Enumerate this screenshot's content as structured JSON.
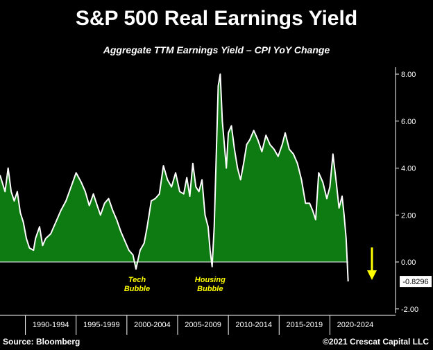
{
  "chart_data": {
    "type": "area",
    "title": "S&P 500 Real Earnings Yield",
    "subtitle": "Aggregate TTM Earnings Yield – CPI YoY Change",
    "ylim": [
      -2.2,
      8.6
    ],
    "yticks": [
      "8.00",
      "6.00",
      "4.00",
      "2.00",
      "0.00",
      "-2.00"
    ],
    "ytick_values": [
      8,
      6,
      4,
      2,
      0,
      -2
    ],
    "xlim": [
      1987.5,
      2023.8
    ],
    "xlabels": [
      "1990-1994",
      "1995-1999",
      "2000-2004",
      "2005-2009",
      "2010-2014",
      "2015-2019",
      "2020-2024"
    ],
    "xlabel_centers": [
      1992.5,
      1997.5,
      2002.5,
      2007.5,
      2012.5,
      2017.5,
      2022.5
    ],
    "xbounds": [
      1990,
      1995,
      2000,
      2005,
      2010,
      2015,
      2020
    ],
    "x": [
      1987.5,
      1988.0,
      1988.3,
      1988.6,
      1988.9,
      1989.2,
      1989.5,
      1989.8,
      1990.1,
      1990.4,
      1990.8,
      1991.0,
      1991.4,
      1991.7,
      1992.0,
      1992.5,
      1993.0,
      1993.5,
      1994.0,
      1994.5,
      1995.0,
      1995.5,
      1995.9,
      1996.3,
      1996.7,
      1997.0,
      1997.4,
      1997.8,
      1998.2,
      1998.6,
      1999.0,
      1999.4,
      1999.8,
      2000.2,
      2000.6,
      2000.9,
      2001.3,
      2001.7,
      2002.0,
      2002.4,
      2002.8,
      2003.2,
      2003.6,
      2004.0,
      2004.4,
      2004.8,
      2005.2,
      2005.6,
      2005.9,
      2006.2,
      2006.5,
      2006.8,
      2007.1,
      2007.4,
      2007.7,
      2008.0,
      2008.2,
      2008.4,
      2008.6,
      2008.8,
      2009.0,
      2009.2,
      2009.4,
      2009.6,
      2009.8,
      2010.0,
      2010.3,
      2010.6,
      2010.9,
      2011.2,
      2011.5,
      2011.8,
      2012.1,
      2012.5,
      2012.9,
      2013.3,
      2013.7,
      2014.1,
      2014.5,
      2014.9,
      2015.3,
      2015.6,
      2016.0,
      2016.4,
      2016.8,
      2017.2,
      2017.6,
      2018.0,
      2018.3,
      2018.6,
      2018.9,
      2019.3,
      2019.7,
      2020.0,
      2020.3,
      2020.6,
      2020.9,
      2021.2,
      2021.4,
      2021.6,
      2021.8
    ],
    "values": [
      3.7,
      3.0,
      4.0,
      3.0,
      2.6,
      3.0,
      2.1,
      1.7,
      1.0,
      0.6,
      0.5,
      1.0,
      1.5,
      0.7,
      1.0,
      1.2,
      1.7,
      2.2,
      2.6,
      3.2,
      3.8,
      3.4,
      3.0,
      2.4,
      2.9,
      2.5,
      2.0,
      2.5,
      2.7,
      2.2,
      1.8,
      1.3,
      0.9,
      0.5,
      0.3,
      -0.3,
      0.5,
      0.8,
      1.5,
      2.6,
      2.7,
      2.9,
      4.1,
      3.5,
      3.2,
      3.8,
      3.0,
      2.9,
      3.6,
      2.8,
      4.2,
      3.2,
      3.0,
      3.5,
      2.0,
      1.5,
      0.5,
      -0.2,
      1.5,
      4.5,
      7.5,
      8.0,
      6.0,
      5.0,
      4.0,
      5.5,
      5.8,
      4.8,
      4.0,
      3.5,
      4.2,
      5.0,
      5.2,
      5.6,
      5.2,
      4.7,
      5.4,
      5.0,
      4.8,
      4.5,
      5.0,
      5.5,
      4.8,
      4.6,
      4.2,
      3.5,
      2.5,
      2.5,
      2.2,
      1.8,
      3.8,
      3.4,
      2.7,
      3.2,
      4.6,
      3.5,
      2.3,
      2.8,
      2.0,
      1.0,
      -0.8296
    ],
    "last_value_label": "-0.8296",
    "fill_color": "#0e7a12",
    "line_color": "#ffffff",
    "arrow_color": "#ffff00",
    "annotations": [
      {
        "lines": [
          "Tech",
          "Bubble"
        ],
        "x": 2001.0
      },
      {
        "lines": [
          "Housing",
          "Bubble"
        ],
        "x": 2008.2
      }
    ],
    "grid": false,
    "legend": "none"
  },
  "footer": {
    "source": "Source: Bloomberg",
    "copyright": "©2021 Crescat Capital LLC"
  }
}
